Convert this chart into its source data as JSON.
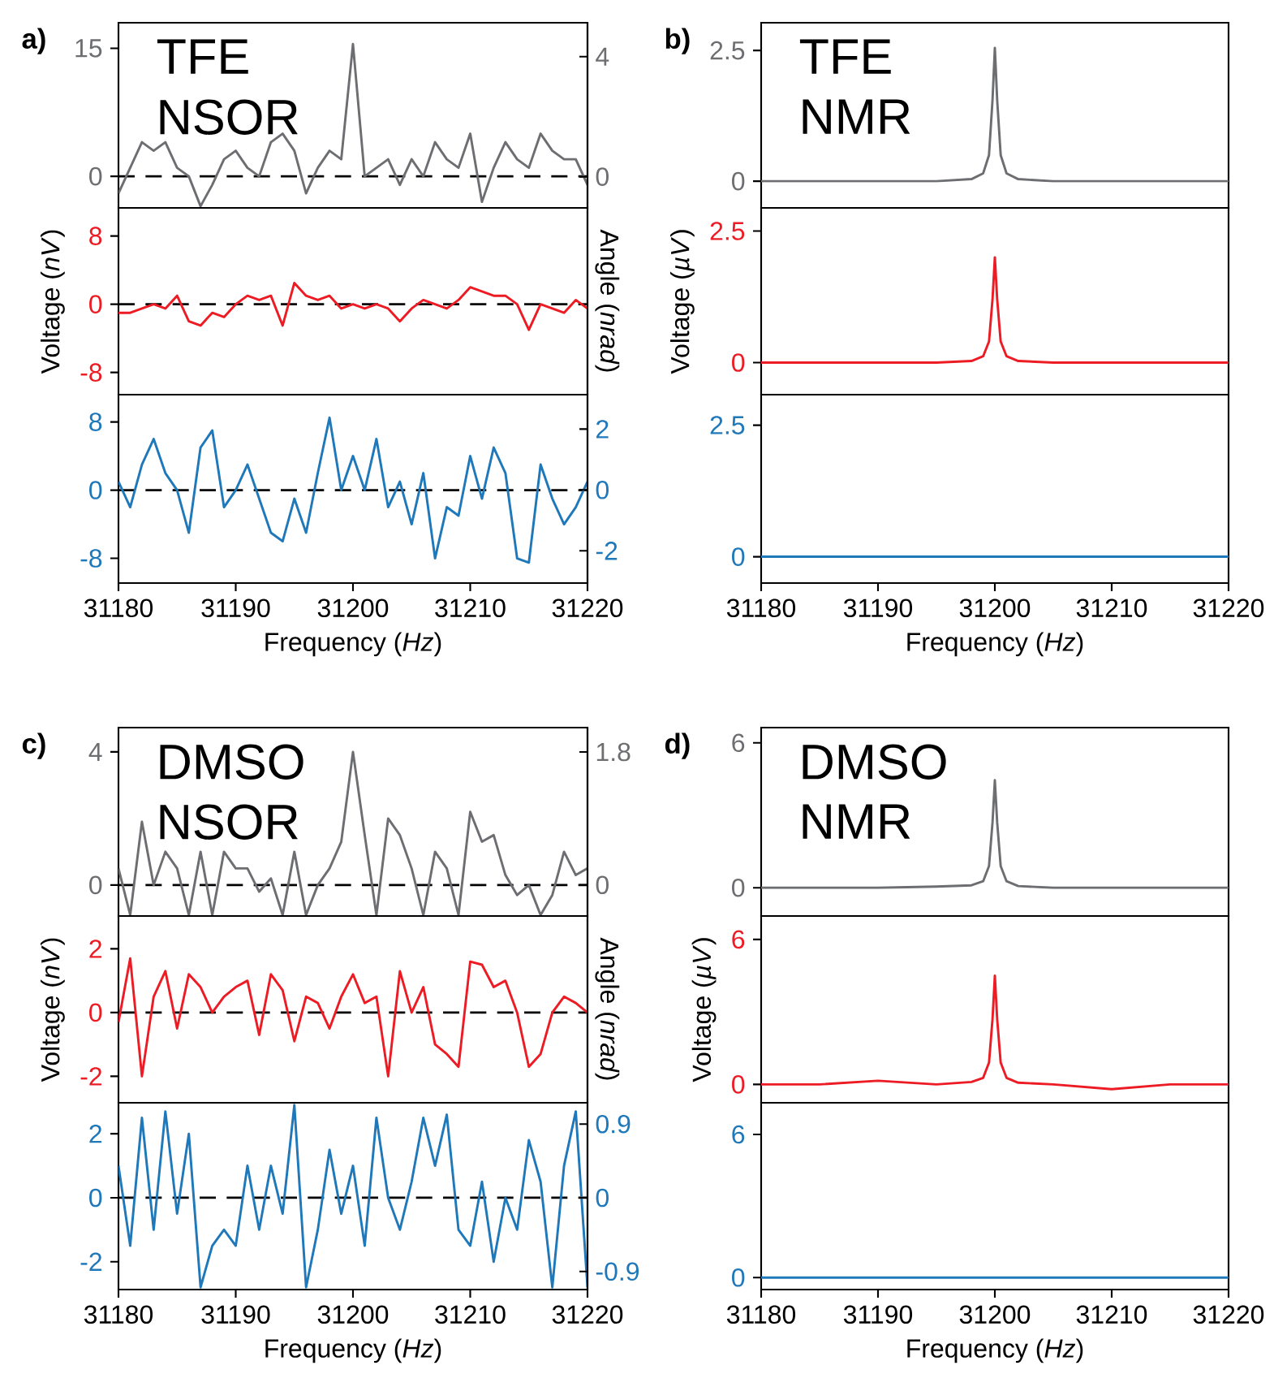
{
  "chart_data": [
    {
      "type": "line",
      "annotations": [
        "a)",
        "TFE",
        "NSOR"
      ],
      "x": [
        31180,
        31181,
        31182,
        31183,
        31184,
        31185,
        31186,
        31187,
        31188,
        31189,
        31190,
        31191,
        31192,
        31193,
        31194,
        31195,
        31196,
        31197,
        31198,
        31199,
        31200,
        31201,
        31202,
        31203,
        31204,
        31205,
        31206,
        31207,
        31208,
        31209,
        31210,
        31211,
        31212,
        31213,
        31214,
        31215,
        31216,
        31217,
        31218,
        31219,
        31220
      ],
      "series": [
        {
          "color": "#6d6e71",
          "values": [
            -2,
            1,
            4,
            3,
            4,
            1,
            0,
            -3.5,
            -1,
            2,
            3,
            1,
            0,
            4,
            5,
            3,
            -2,
            1,
            3,
            2,
            15.5,
            0,
            1,
            2,
            -1,
            2,
            0,
            4,
            2,
            1,
            5,
            -3,
            1,
            4,
            2,
            1,
            5,
            3,
            2,
            2,
            -1
          ]
        }
      ],
      "xlim": [
        31180,
        31220
      ],
      "ylim": [
        -3.7,
        18
      ],
      "yticks": [
        0,
        15
      ],
      "y2lim": [
        -1.04,
        5.13
      ],
      "y2ticks": [
        0,
        4
      ],
      "tick_labels": "y",
      "ref_lines": [
        {
          "axis": "y",
          "value": 0,
          "color": "#000000",
          "line_style": "dashed"
        }
      ]
    },
    {
      "type": "line",
      "ylabel": "Voltage (*nV*)",
      "y2label": "Angle (*nrad*)",
      "x": [
        31180,
        31181,
        31182,
        31183,
        31184,
        31185,
        31186,
        31187,
        31188,
        31189,
        31190,
        31191,
        31192,
        31193,
        31194,
        31195,
        31196,
        31197,
        31198,
        31199,
        31200,
        31201,
        31202,
        31203,
        31204,
        31205,
        31206,
        31207,
        31208,
        31209,
        31210,
        31211,
        31212,
        31213,
        31214,
        31215,
        31216,
        31217,
        31218,
        31219,
        31220
      ],
      "series": [
        {
          "color": "#ed1c24",
          "values": [
            -1,
            -1,
            -0.5,
            0,
            -0.5,
            1,
            -2,
            -2.5,
            -1,
            -1.5,
            0,
            1,
            0.5,
            1,
            -2.5,
            2.5,
            1,
            0.5,
            1,
            -0.5,
            0,
            -0.5,
            0,
            -0.5,
            -2,
            -0.5,
            0.5,
            0,
            -0.5,
            0.5,
            2,
            1.5,
            1,
            1,
            0,
            -3,
            0,
            -0.5,
            -1,
            0.5,
            -0.5
          ]
        }
      ],
      "xlim": [
        31180,
        31220
      ],
      "ylim": [
        -10.6,
        11.3
      ],
      "yticks": [
        -8,
        0,
        8
      ],
      "tick_labels": "y",
      "ref_lines": [
        {
          "axis": "y",
          "value": 0,
          "color": "#000000",
          "line_style": "dashed"
        }
      ]
    },
    {
      "type": "line",
      "xlabel": "Frequency (*Hz*)",
      "x": [
        31180,
        31181,
        31182,
        31183,
        31184,
        31185,
        31186,
        31187,
        31188,
        31189,
        31190,
        31191,
        31192,
        31193,
        31194,
        31195,
        31196,
        31197,
        31198,
        31199,
        31200,
        31201,
        31202,
        31203,
        31204,
        31205,
        31206,
        31207,
        31208,
        31209,
        31210,
        31211,
        31212,
        31213,
        31214,
        31215,
        31216,
        31217,
        31218,
        31219,
        31220
      ],
      "series": [
        {
          "color": "#1f78b9",
          "values": [
            1,
            -2,
            3,
            6,
            2,
            0,
            -5,
            5,
            7,
            -2,
            0,
            3,
            -1,
            -5,
            -6,
            -1,
            -5,
            2,
            8.5,
            0,
            4,
            0,
            6,
            -2,
            1,
            -4,
            2,
            -8,
            -2,
            -3,
            4,
            -1,
            5,
            2,
            -8,
            -8.5,
            3,
            -1,
            -4,
            -2,
            1
          ]
        }
      ],
      "xlim": [
        31180,
        31220
      ],
      "xticks": [
        31180,
        31190,
        31200,
        31210,
        31220
      ],
      "ylim": [
        -10.9,
        11.2
      ],
      "yticks": [
        -8,
        0,
        8
      ],
      "y2lim": [
        -3.06,
        3.13
      ],
      "y2ticks": [
        -2,
        0,
        2
      ],
      "ref_lines": [
        {
          "axis": "y",
          "value": 0,
          "color": "#000000",
          "line_style": "dashed"
        }
      ]
    },
    {
      "type": "line",
      "annotations": [
        "b)",
        "TFE",
        "NMR"
      ],
      "series": [
        {
          "color": "#6d6e71",
          "x": [
            31180,
            31185,
            31190,
            31195,
            31198,
            31199,
            31199.5,
            31199.8,
            31200,
            31200.2,
            31200.5,
            31201,
            31202,
            31205,
            31210,
            31215,
            31220
          ],
          "values": [
            0,
            0,
            0,
            0,
            0.04,
            0.15,
            0.5,
            1.55,
            2.55,
            1.55,
            0.5,
            0.15,
            0.04,
            0,
            0,
            0,
            0
          ]
        }
      ],
      "xlim": [
        31180,
        31220
      ],
      "ylim": [
        -0.51,
        3.03
      ],
      "yticks": [
        0,
        2.5
      ],
      "tick_labels": "y"
    },
    {
      "type": "line",
      "ylabel": "Voltage (*µV*)",
      "series": [
        {
          "color": "#ed1c24",
          "x": [
            31180,
            31185,
            31190,
            31195,
            31198,
            31199,
            31199.5,
            31199.8,
            31200,
            31200.2,
            31200.5,
            31201,
            31202,
            31205,
            31210,
            31215,
            31220
          ],
          "values": [
            0,
            0,
            0,
            0,
            0.03,
            0.12,
            0.4,
            1.2,
            2.0,
            1.2,
            0.4,
            0.12,
            0.03,
            0,
            0,
            0,
            0
          ]
        }
      ],
      "xlim": [
        31180,
        31220
      ],
      "ylim": [
        -0.61,
        2.94
      ],
      "yticks": [
        0,
        2.5
      ],
      "tick_labels": "y"
    },
    {
      "type": "line",
      "xlabel": "Frequency (*Hz*)",
      "series": [
        {
          "color": "#1f78b9",
          "x": [
            31180,
            31200,
            31220
          ],
          "values": [
            0,
            0,
            0
          ]
        }
      ],
      "xlim": [
        31180,
        31220
      ],
      "xticks": [
        31180,
        31190,
        31200,
        31210,
        31220
      ],
      "ylim": [
        -0.5,
        3.08
      ],
      "yticks": [
        0,
        2.5
      ]
    },
    {
      "type": "line",
      "annotations": [
        "c)",
        "DMSO",
        "NSOR"
      ],
      "x": [
        31180,
        31181,
        31182,
        31183,
        31184,
        31185,
        31186,
        31187,
        31188,
        31189,
        31190,
        31191,
        31192,
        31193,
        31194,
        31195,
        31196,
        31197,
        31198,
        31199,
        31200,
        31201,
        31202,
        31203,
        31204,
        31205,
        31206,
        31207,
        31208,
        31209,
        31210,
        31211,
        31212,
        31213,
        31214,
        31215,
        31216,
        31217,
        31218,
        31219,
        31220
      ],
      "series": [
        {
          "color": "#6d6e71",
          "values": [
            0.5,
            -0.9,
            1.9,
            0,
            1,
            0.5,
            -0.9,
            1,
            -0.9,
            1,
            0.5,
            0.5,
            -0.2,
            0.2,
            -0.9,
            1,
            -0.9,
            0,
            0.5,
            1.3,
            4,
            1.5,
            -0.9,
            2,
            1.5,
            0.5,
            -0.9,
            1,
            0.5,
            -0.9,
            2.2,
            1.3,
            1.5,
            0.3,
            -0.3,
            0,
            -0.9,
            -0.3,
            1,
            0.3,
            0.5
          ]
        }
      ],
      "xlim": [
        31180,
        31220
      ],
      "ylim": [
        -0.93,
        4.73
      ],
      "yticks": [
        0,
        4
      ],
      "y2lim": [
        -0.42,
        2.13
      ],
      "y2ticks": [
        0,
        1.8
      ],
      "tick_labels": "y",
      "ref_lines": [
        {
          "axis": "y",
          "value": 0,
          "color": "#000000",
          "line_style": "dashed"
        }
      ]
    },
    {
      "type": "line",
      "ylabel": "Voltage (*nV*)",
      "y2label": "Angle (*nrad*)",
      "x": [
        31180,
        31181,
        31182,
        31183,
        31184,
        31185,
        31186,
        31187,
        31188,
        31189,
        31190,
        31191,
        31192,
        31193,
        31194,
        31195,
        31196,
        31197,
        31198,
        31199,
        31200,
        31201,
        31202,
        31203,
        31204,
        31205,
        31206,
        31207,
        31208,
        31209,
        31210,
        31211,
        31212,
        31213,
        31214,
        31215,
        31216,
        31217,
        31218,
        31219,
        31220
      ],
      "series": [
        {
          "color": "#ed1c24",
          "values": [
            -0.3,
            1.7,
            -2,
            0.5,
            1.3,
            -0.5,
            1.2,
            0.8,
            0,
            0.5,
            0.8,
            1,
            -0.7,
            1.2,
            0.7,
            -0.9,
            0.5,
            0.3,
            -0.5,
            0.5,
            1.2,
            0.3,
            0.5,
            -2,
            1.3,
            0,
            0.8,
            -1,
            -1.3,
            -1.7,
            1.6,
            1.5,
            0.8,
            1,
            0,
            -1.7,
            -1.3,
            0,
            0.5,
            0.3,
            0
          ]
        }
      ],
      "xlim": [
        31180,
        31220
      ],
      "ylim": [
        -2.83,
        3.03
      ],
      "yticks": [
        -2,
        0,
        2
      ],
      "tick_labels": "y",
      "ref_lines": [
        {
          "axis": "y",
          "value": 0,
          "color": "#000000",
          "line_style": "dashed"
        }
      ]
    },
    {
      "type": "line",
      "xlabel": "Frequency (*Hz*)",
      "x": [
        31180,
        31181,
        31182,
        31183,
        31184,
        31185,
        31186,
        31187,
        31188,
        31189,
        31190,
        31191,
        31192,
        31193,
        31194,
        31195,
        31196,
        31197,
        31198,
        31199,
        31200,
        31201,
        31202,
        31203,
        31204,
        31205,
        31206,
        31207,
        31208,
        31209,
        31210,
        31211,
        31212,
        31213,
        31214,
        31215,
        31216,
        31217,
        31218,
        31219,
        31220
      ],
      "series": [
        {
          "color": "#1f78b9",
          "values": [
            1,
            -1.5,
            2.5,
            -1,
            2.7,
            -0.5,
            2,
            -2.8,
            -1.5,
            -1,
            -1.5,
            1,
            -1,
            1,
            -0.5,
            2.9,
            -2.8,
            -1,
            1.5,
            -0.5,
            1,
            -1.5,
            2.5,
            0,
            -1,
            0.5,
            2.5,
            1,
            2.6,
            -1,
            -1.5,
            0.5,
            -2,
            0,
            -1,
            1.8,
            0.5,
            -2.8,
            1,
            2.7,
            -2.8
          ]
        }
      ],
      "xlim": [
        31180,
        31220
      ],
      "xticks": [
        31180,
        31190,
        31200,
        31210,
        31220
      ],
      "ylim": [
        -2.87,
        2.97
      ],
      "yticks": [
        -2,
        0,
        2
      ],
      "y2lim": [
        -1.12,
        1.16
      ],
      "y2ticks": [
        -0.9,
        0,
        0.9
      ],
      "ref_lines": [
        {
          "axis": "y",
          "value": 0,
          "color": "#000000",
          "line_style": "dashed"
        }
      ]
    },
    {
      "type": "line",
      "annotations": [
        "d)",
        "DMSO",
        "NMR"
      ],
      "series": [
        {
          "color": "#6d6e71",
          "x": [
            31180,
            31185,
            31190,
            31195,
            31198,
            31199,
            31199.5,
            31199.8,
            31200,
            31200.2,
            31200.5,
            31201,
            31202,
            31205,
            31210,
            31215,
            31220
          ],
          "values": [
            0,
            0,
            0,
            0.05,
            0.1,
            0.27,
            0.9,
            2.7,
            4.45,
            2.7,
            0.9,
            0.27,
            0.07,
            0,
            0,
            0,
            0
          ]
        }
      ],
      "xlim": [
        31180,
        31220
      ],
      "ylim": [
        -1.17,
        6.63
      ],
      "yticks": [
        0,
        6
      ],
      "tick_labels": "y"
    },
    {
      "type": "line",
      "ylabel": "Voltage (*µV*)",
      "series": [
        {
          "color": "#ed1c24",
          "x": [
            31180,
            31185,
            31190,
            31195,
            31198,
            31199,
            31199.5,
            31199.8,
            31200,
            31200.2,
            31200.5,
            31201,
            31202,
            31205,
            31210,
            31215,
            31220
          ],
          "values": [
            0,
            0,
            0.15,
            0,
            0.1,
            0.27,
            0.9,
            2.7,
            4.5,
            2.7,
            0.9,
            0.27,
            0.07,
            0,
            -0.2,
            0,
            0
          ]
        }
      ],
      "xlim": [
        31180,
        31220
      ],
      "ylim": [
        -0.76,
        6.97
      ],
      "yticks": [
        0,
        6
      ],
      "tick_labels": "y"
    },
    {
      "type": "line",
      "xlabel": "Frequency (*Hz*)",
      "series": [
        {
          "color": "#1f78b9",
          "x": [
            31180,
            31200,
            31220
          ],
          "values": [
            0,
            0,
            0
          ]
        }
      ],
      "xlim": [
        31180,
        31220
      ],
      "xticks": [
        31180,
        31190,
        31200,
        31210,
        31220
      ],
      "ylim": [
        -0.5,
        7.33
      ],
      "yticks": [
        0,
        6
      ]
    }
  ]
}
